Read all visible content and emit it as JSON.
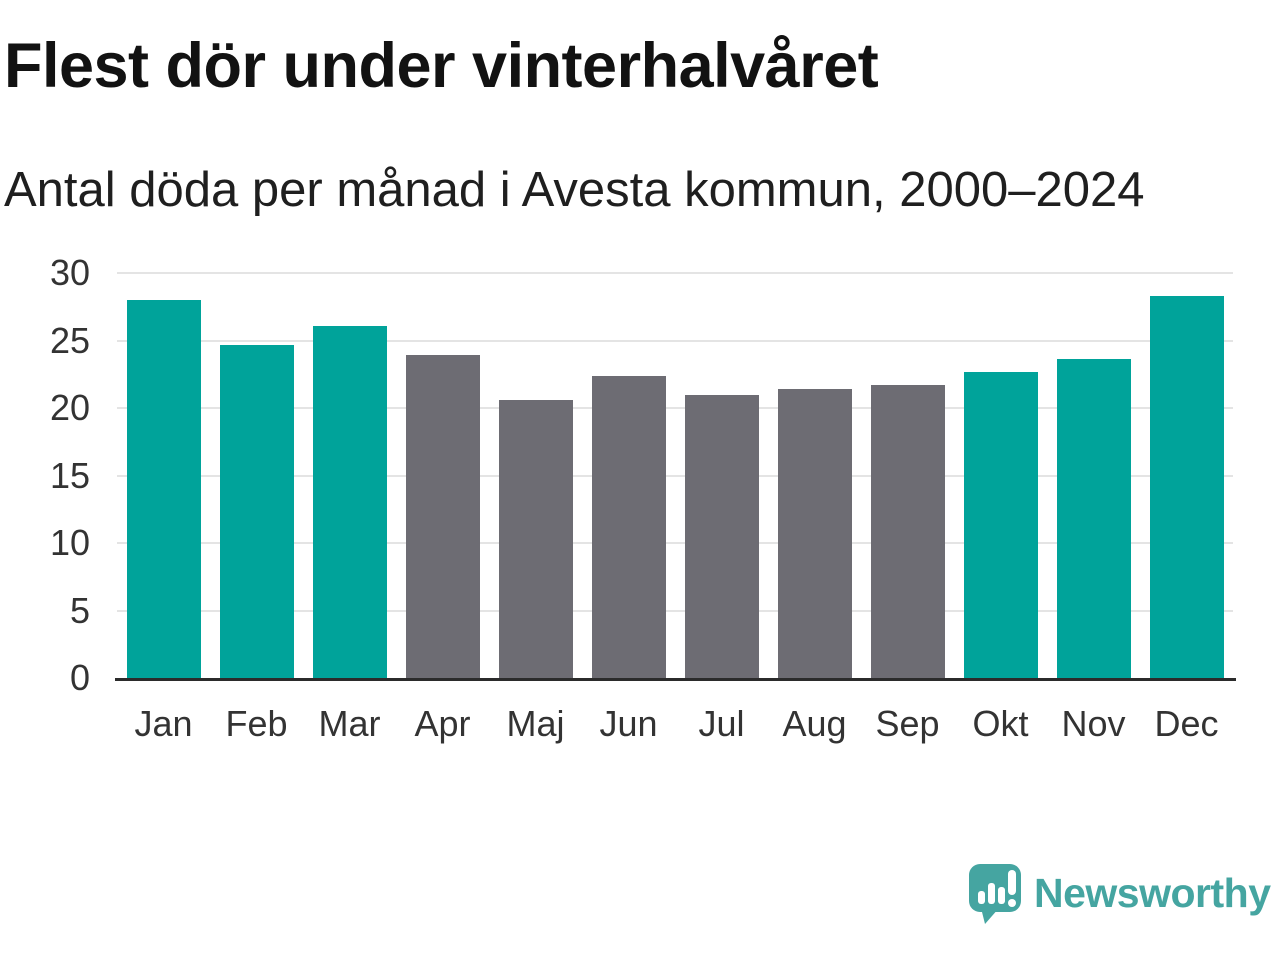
{
  "chart_data": {
    "type": "bar",
    "title": "Flest dör under vinterhalvåret",
    "subtitle": "Antal döda per månad i Avesta kommun, 2000–2024",
    "categories": [
      "Jan",
      "Feb",
      "Mar",
      "Apr",
      "Maj",
      "Jun",
      "Jul",
      "Aug",
      "Sep",
      "Okt",
      "Nov",
      "Dec"
    ],
    "values": [
      28.0,
      24.7,
      26.1,
      23.9,
      20.6,
      22.4,
      21.0,
      21.4,
      21.7,
      22.7,
      23.6,
      28.3
    ],
    "bar_colors": [
      "teal",
      "teal",
      "teal",
      "gray",
      "gray",
      "gray",
      "gray",
      "gray",
      "gray",
      "teal",
      "teal",
      "teal"
    ],
    "colors": {
      "teal": "#00a39a",
      "gray": "#6d6c73"
    },
    "xlabel": "",
    "ylabel": "",
    "ylim": [
      0,
      30
    ],
    "yticks": [
      0,
      5,
      10,
      15,
      20,
      25,
      30
    ],
    "grid": true,
    "legend": "none"
  },
  "branding": {
    "logo_text": "Newsworthy",
    "logo_color": "#45a5a1",
    "logo_icon": "newsworthy-speech-bubble-chart-icon"
  }
}
